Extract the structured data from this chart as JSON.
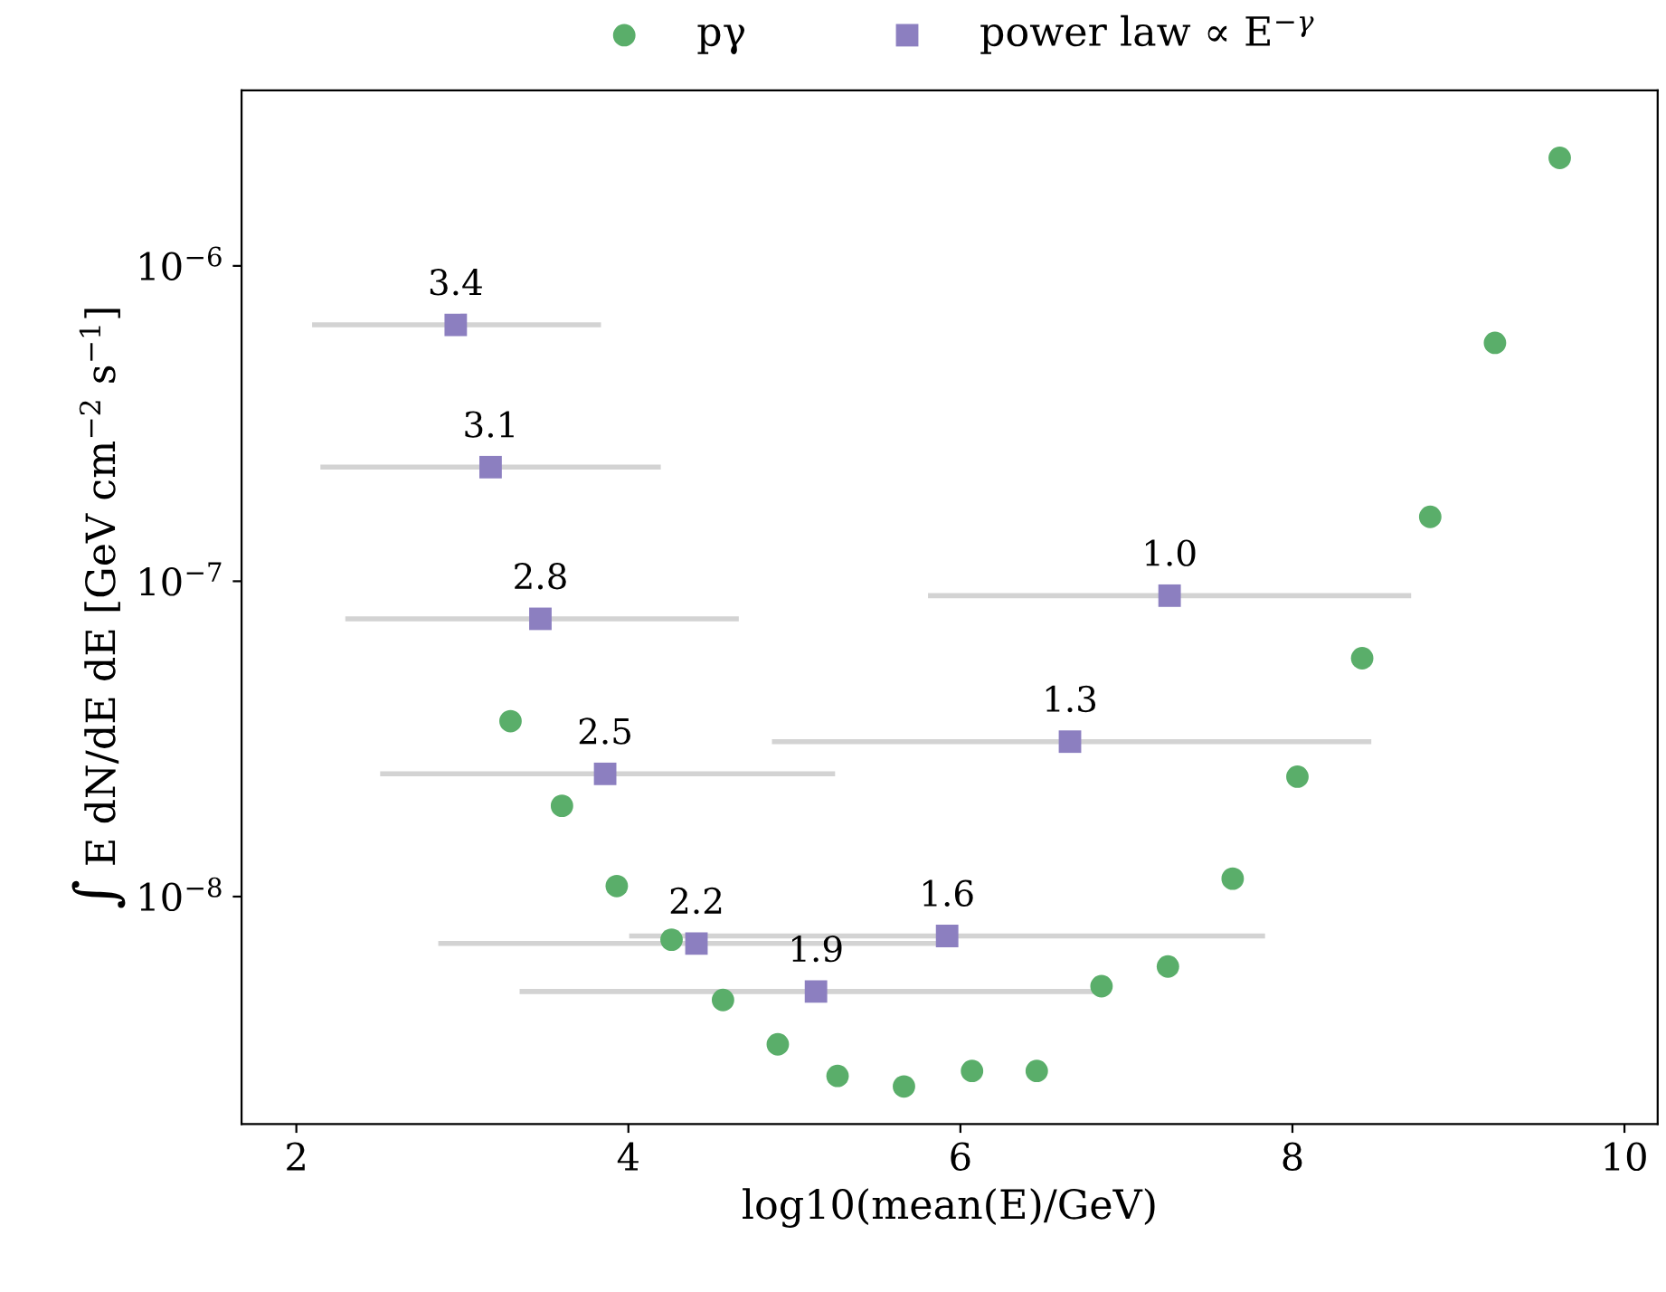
{
  "chart_data": {
    "type": "scatter",
    "xlabel": "log10(mean(E)/GeV)",
    "ylabel": "∫ E dN/dE dE [GeV cm$^{−2}$ s$^{−1}$]",
    "log": "y",
    "grid": false,
    "legend": "top",
    "xlim": [
      1.67,
      10.2
    ],
    "xticks": [
      2,
      4,
      6,
      8,
      10
    ],
    "ylim": [
      1.9e-09,
      3.6e-06
    ],
    "yticks": [
      {
        "value": 1e-08,
        "label": "10$^{−8}$"
      },
      {
        "value": 1e-07,
        "label": "10$^{−7}$"
      },
      {
        "value": 1e-06,
        "label": "10$^{−6}$"
      }
    ],
    "series": [
      {
        "name": "pγ",
        "color": "#5aae6a",
        "marker": "circle",
        "x": [
          3.29,
          3.6,
          3.93,
          4.26,
          4.57,
          4.9,
          5.26,
          5.66,
          6.07,
          6.46,
          6.85,
          7.25,
          7.64,
          8.03,
          8.42,
          8.83,
          9.22,
          9.61
        ],
        "values": [
          3.6e-08,
          1.94e-08,
          1.08e-08,
          7.3e-09,
          4.7e-09,
          3.4e-09,
          2.7e-09,
          2.5e-09,
          2.8e-09,
          2.8e-09,
          5.2e-09,
          6e-09,
          1.14e-08,
          2.4e-08,
          5.7e-08,
          1.6e-07,
          5.7e-07,
          2.2e-06
        ]
      },
      {
        "name": "power law ∝ E$^{−γ}$",
        "color": "#8c7fc0",
        "marker": "square",
        "x": [
          2.96,
          3.17,
          3.47,
          3.86,
          4.41,
          5.13,
          5.92,
          6.66,
          7.26
        ],
        "values": [
          6.5e-07,
          2.3e-07,
          7.6e-08,
          2.45e-08,
          7.1e-09,
          5e-09,
          7.5e-09,
          3.1e-08,
          9e-08
        ],
        "xerrors": [
          [
            2.11,
            3.82
          ],
          [
            2.16,
            4.18
          ],
          [
            2.31,
            4.65
          ],
          [
            2.52,
            5.23
          ],
          [
            2.87,
            5.95
          ],
          [
            3.36,
            6.87
          ],
          [
            4.02,
            7.82
          ],
          [
            4.88,
            8.46
          ],
          [
            5.82,
            8.7
          ]
        ]
      }
    ],
    "annotations": [
      {
        "text": "3.4",
        "x": 2.96,
        "y": 6.5e-07
      },
      {
        "text": "3.1",
        "x": 3.17,
        "y": 2.3e-07
      },
      {
        "text": "2.8",
        "x": 3.47,
        "y": 7.6e-08
      },
      {
        "text": "2.5",
        "x": 3.86,
        "y": 2.45e-08
      },
      {
        "text": "2.2",
        "x": 4.41,
        "y": 7.1e-09
      },
      {
        "text": "1.9",
        "x": 5.13,
        "y": 5e-09
      },
      {
        "text": "1.6",
        "x": 5.92,
        "y": 7.5e-09
      },
      {
        "text": "1.3",
        "x": 6.66,
        "y": 3.1e-08
      },
      {
        "text": "1.0",
        "x": 7.26,
        "y": 9e-08
      }
    ]
  }
}
